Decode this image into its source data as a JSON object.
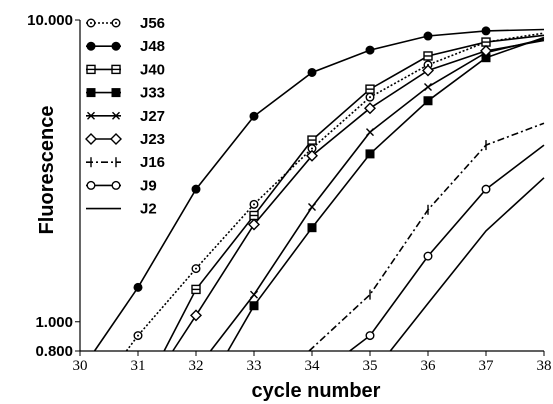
{
  "chart_data": {
    "type": "line",
    "xlabel": "cycle number",
    "ylabel": "Fluorescence",
    "xlim": [
      30,
      38
    ],
    "ylim": [
      0.8,
      10.0
    ],
    "y_scale": "log",
    "x_ticks": [
      "30",
      "31",
      "32",
      "33",
      "34",
      "35",
      "36",
      "37",
      "38"
    ],
    "y_ticks": [
      {
        "value": 10.0,
        "label": "10.000"
      },
      {
        "value": 1.0,
        "label": "1.000"
      },
      {
        "value": 0.8,
        "label": "0.800"
      }
    ],
    "grid": false,
    "legend_position": "top-left",
    "series": [
      {
        "name": "J56",
        "marker": "open-dot-circle",
        "dash": "2,2",
        "x": [
          30.8,
          31,
          32,
          33,
          34,
          35,
          36,
          37,
          38
        ],
        "y": [
          0.8,
          0.9,
          1.5,
          2.45,
          3.75,
          5.55,
          7.1,
          8.45,
          9.05
        ]
      },
      {
        "name": "J48",
        "marker": "filled-circle",
        "dash": "",
        "x": [
          30.25,
          31,
          32,
          33,
          34,
          35,
          36,
          37,
          38
        ],
        "y": [
          0.8,
          1.3,
          2.75,
          4.8,
          6.7,
          7.95,
          8.85,
          9.2,
          9.3
        ]
      },
      {
        "name": "J40",
        "marker": "open-square",
        "dash": "",
        "x": [
          31.45,
          32,
          33,
          34,
          35,
          36,
          37,
          38
        ],
        "y": [
          0.8,
          1.28,
          2.25,
          4.0,
          5.9,
          7.6,
          8.45,
          8.9
        ]
      },
      {
        "name": "J33",
        "marker": "filled-square",
        "dash": "",
        "x": [
          32.55,
          33,
          34,
          35,
          36,
          37,
          38
        ],
        "y": [
          0.8,
          1.13,
          2.05,
          3.6,
          5.4,
          7.5,
          8.75
        ]
      },
      {
        "name": "J27",
        "marker": "x",
        "dash": "",
        "x": [
          32.25,
          33,
          34,
          35,
          36,
          37,
          38
        ],
        "y": [
          0.8,
          1.23,
          2.4,
          4.25,
          6.0,
          7.8,
          8.65
        ]
      },
      {
        "name": "J23",
        "marker": "open-diamond",
        "dash": "",
        "x": [
          31.6,
          32,
          33,
          34,
          35,
          36,
          37,
          38
        ],
        "y": [
          0.8,
          1.05,
          2.1,
          3.55,
          5.1,
          6.8,
          7.9,
          8.55
        ]
      },
      {
        "name": "J16",
        "marker": "vertical-bar",
        "dash": "7,3,2,3",
        "x": [
          33.95,
          35,
          36,
          37,
          38
        ],
        "y": [
          0.8,
          1.23,
          2.35,
          3.85,
          4.55
        ]
      },
      {
        "name": "J9",
        "marker": "open-ring",
        "dash": "",
        "x": [
          34.65,
          35,
          36,
          37,
          38
        ],
        "y": [
          0.8,
          0.9,
          1.65,
          2.75,
          3.85
        ]
      },
      {
        "name": "J2",
        "marker": "none",
        "dash": "",
        "x": [
          35.35,
          36,
          37,
          38
        ],
        "y": [
          0.8,
          1.15,
          2.0,
          3.0
        ]
      }
    ]
  }
}
